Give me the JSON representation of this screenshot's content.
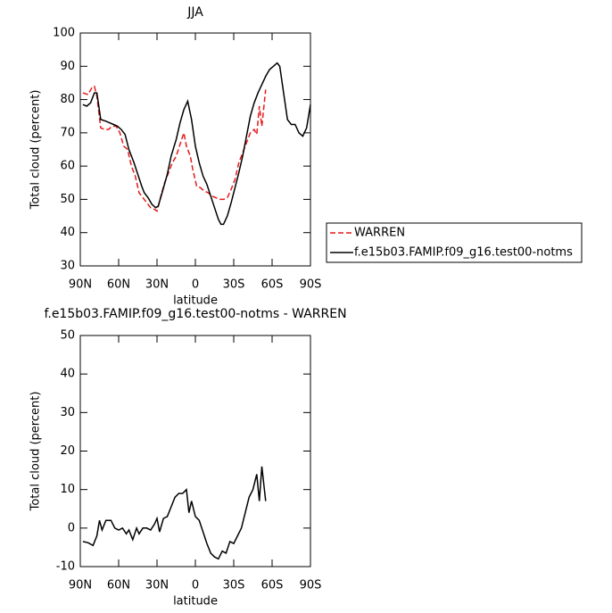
{
  "chart_data": [
    {
      "type": "line",
      "title": "JJA",
      "x_label": "latitude",
      "y_label": "Total cloud (percent)",
      "xlim": [
        90,
        -90
      ],
      "ylim": [
        30,
        100
      ],
      "xticks": [
        {
          "value": 90,
          "label": "90N"
        },
        {
          "value": 60,
          "label": "60N"
        },
        {
          "value": 30,
          "label": "30N"
        },
        0,
        {
          "value": -30,
          "label": "30S"
        },
        {
          "value": -60,
          "label": "60S"
        },
        {
          "value": -90,
          "label": "90S"
        }
      ],
      "yticks": [
        30,
        40,
        50,
        60,
        70,
        80,
        90,
        100
      ],
      "legend": "right",
      "series": [
        {
          "name": "WARREN",
          "color": "#e41a1c",
          "dashed": true,
          "x": [
            88,
            84,
            81,
            79,
            77,
            74,
            71,
            68,
            65,
            62,
            59,
            56,
            53,
            50,
            47,
            44,
            41,
            38,
            35,
            32,
            30,
            27,
            24,
            21,
            18,
            15,
            12,
            9,
            7,
            4,
            2,
            -1,
            -4,
            -7,
            -10,
            -13,
            -16,
            -19,
            -22,
            -25,
            -28,
            -31,
            -34,
            -37,
            -40,
            -43,
            -46,
            -48,
            -50,
            -52,
            -55
          ],
          "values": [
            82,
            81.5,
            83.5,
            84,
            81,
            71.5,
            71,
            71,
            72,
            72,
            70,
            66,
            65,
            60,
            57,
            52,
            50.5,
            49,
            47.5,
            47,
            46.5,
            51,
            55,
            58,
            61,
            63,
            66.5,
            70,
            66,
            63,
            59,
            54,
            53.5,
            52.5,
            52,
            51,
            50.5,
            50,
            50,
            50.5,
            53,
            56,
            61,
            64,
            67,
            70,
            71,
            69.5,
            78,
            72,
            83
          ]
        },
        {
          "name": "f.e15b03.FAMIP.f09_g16.test00-notms",
          "color": "#000000",
          "dashed": false,
          "x": [
            88,
            85,
            82,
            79,
            77,
            74,
            70,
            67,
            64,
            61,
            58,
            55,
            52,
            48,
            45,
            42,
            40,
            37,
            34,
            31,
            29,
            26,
            22,
            19,
            15,
            12,
            9,
            6,
            3,
            0,
            -3,
            -6,
            -9,
            -12,
            -15,
            -18,
            -20,
            -22,
            -25,
            -28,
            -31,
            -34,
            -37,
            -40,
            -43,
            -46,
            -49,
            -52,
            -55,
            -58,
            -61,
            -64,
            -66,
            -69,
            -72,
            -75,
            -78,
            -81,
            -84,
            -87,
            -90
          ],
          "values": [
            78.5,
            78,
            79,
            82,
            82,
            74,
            73.5,
            73,
            72.5,
            72,
            71,
            69.5,
            65,
            61,
            57.5,
            54,
            52,
            50.5,
            48.5,
            47.5,
            48,
            52,
            57.5,
            63,
            68,
            73,
            77,
            79.5,
            74,
            66,
            61,
            57,
            54.5,
            51,
            47.5,
            44,
            42.5,
            42.5,
            45,
            49,
            53.5,
            58,
            63,
            69,
            75,
            79,
            82,
            84.5,
            87,
            89,
            90,
            91,
            90,
            82,
            74,
            72.5,
            72.5,
            70,
            69,
            71.5,
            78.5
          ]
        }
      ]
    },
    {
      "type": "line",
      "title": "f.e15b03.FAMIP.f09_g16.test00-notms - WARREN",
      "x_label": "latitude",
      "y_label": "Total cloud (percent)",
      "xlim": [
        90,
        -90
      ],
      "ylim": [
        -10,
        50
      ],
      "xticks": [
        {
          "value": 90,
          "label": "90N"
        },
        {
          "value": 60,
          "label": "60N"
        },
        {
          "value": 30,
          "label": "30N"
        },
        0,
        {
          "value": -30,
          "label": "30S"
        },
        {
          "value": -60,
          "label": "60S"
        },
        {
          "value": -90,
          "label": "90S"
        }
      ],
      "yticks": [
        -10,
        0,
        10,
        20,
        30,
        40,
        50
      ],
      "series": [
        {
          "color": "#000000",
          "dashed": false,
          "x": [
            88,
            84,
            80,
            77,
            75,
            73,
            70,
            66,
            63,
            60,
            57,
            54,
            52,
            49,
            46,
            44,
            41,
            38,
            35,
            32,
            30,
            28,
            25,
            22,
            19,
            16,
            13,
            10,
            7,
            5,
            3,
            0,
            -3,
            -6,
            -9,
            -12,
            -15,
            -18,
            -21,
            -24,
            -27,
            -30,
            -33,
            -36,
            -39,
            -42,
            -45,
            -48,
            -50,
            -52,
            -55
          ],
          "values": [
            -3.5,
            -3.8,
            -4.5,
            -2,
            2,
            -0.5,
            2,
            2,
            0,
            -0.5,
            0,
            -1.5,
            -0.5,
            -3,
            0,
            -1.5,
            0,
            0,
            -0.5,
            1,
            2.5,
            -1,
            2.5,
            3,
            5.5,
            8,
            9,
            9,
            10,
            4,
            7,
            3,
            2,
            -1,
            -4,
            -6.5,
            -7.5,
            -8,
            -6,
            -6.5,
            -3.5,
            -4,
            -2,
            0,
            4,
            8,
            10,
            14,
            7,
            16,
            7
          ]
        }
      ]
    }
  ]
}
